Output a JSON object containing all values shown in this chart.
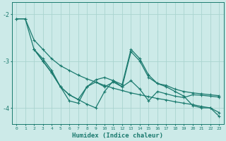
{
  "xlabel": "Humidex (Indice chaleur)",
  "xlim": [
    -0.5,
    23.5
  ],
  "ylim": [
    -4.35,
    -1.75
  ],
  "yticks": [
    -4,
    -3,
    -2
  ],
  "xticks": [
    0,
    1,
    2,
    3,
    4,
    5,
    6,
    7,
    8,
    9,
    10,
    11,
    12,
    13,
    14,
    15,
    16,
    17,
    18,
    19,
    20,
    21,
    22,
    23
  ],
  "background_color": "#cceae8",
  "grid_color": "#aad4d0",
  "line_color": "#1a7a6e",
  "series": [
    {
      "x": [
        0,
        1,
        2,
        3,
        4,
        5,
        6,
        7,
        8,
        9,
        10,
        11,
        12,
        13,
        14,
        15,
        16,
        17,
        18,
        19,
        20,
        21,
        22,
        23
      ],
      "y": [
        -2.1,
        -2.1,
        -2.55,
        -2.75,
        -2.95,
        -3.1,
        -3.2,
        -3.3,
        -3.38,
        -3.45,
        -3.52,
        -3.58,
        -3.63,
        -3.68,
        -3.72,
        -3.76,
        -3.8,
        -3.83,
        -3.87,
        -3.9,
        -3.93,
        -3.97,
        -4.0,
        -4.1
      ],
      "linestyle": "solid",
      "marker": "+"
    },
    {
      "x": [
        0,
        1,
        2,
        3,
        4,
        5,
        6,
        7,
        8,
        9,
        10,
        11,
        12,
        13,
        14,
        15,
        16,
        17,
        18,
        19,
        20,
        21,
        22,
        23
      ],
      "y": [
        -2.1,
        -2.1,
        -2.75,
        -2.95,
        -3.2,
        -3.55,
        -3.85,
        -3.9,
        -3.55,
        -3.45,
        -3.55,
        -3.45,
        -3.55,
        -2.8,
        -3.0,
        -3.35,
        -3.48,
        -3.55,
        -3.65,
        -3.75,
        -3.95,
        -4.0,
        -4.0,
        -4.18
      ],
      "linestyle": "solid",
      "marker": "+"
    },
    {
      "x": [
        2,
        3,
        4,
        5,
        6,
        7,
        8,
        9,
        10,
        11,
        12,
        13,
        14,
        15,
        16,
        17,
        18,
        19,
        20,
        21,
        22,
        23
      ],
      "y": [
        -2.75,
        -3.0,
        -3.25,
        -3.55,
        -3.72,
        -3.82,
        -3.55,
        -3.4,
        -3.35,
        -3.42,
        -3.5,
        -2.75,
        -2.95,
        -3.3,
        -3.48,
        -3.52,
        -3.6,
        -3.65,
        -3.68,
        -3.7,
        -3.72,
        -3.74
      ],
      "linestyle": "solid",
      "marker": "+"
    },
    {
      "x": [
        2,
        3,
        4,
        5,
        6,
        7,
        8,
        9,
        10,
        11,
        12,
        13,
        14,
        15,
        16,
        17,
        18,
        19,
        20,
        21,
        22,
        23
      ],
      "y": [
        -2.75,
        -3.0,
        -3.25,
        -3.55,
        -3.72,
        -3.82,
        -3.92,
        -4.0,
        -3.65,
        -3.42,
        -3.55,
        -3.42,
        -3.6,
        -3.85,
        -3.65,
        -3.7,
        -3.75,
        -3.78,
        -3.72,
        -3.73,
        -3.75,
        -3.77
      ],
      "linestyle": "solid",
      "marker": "+"
    }
  ]
}
